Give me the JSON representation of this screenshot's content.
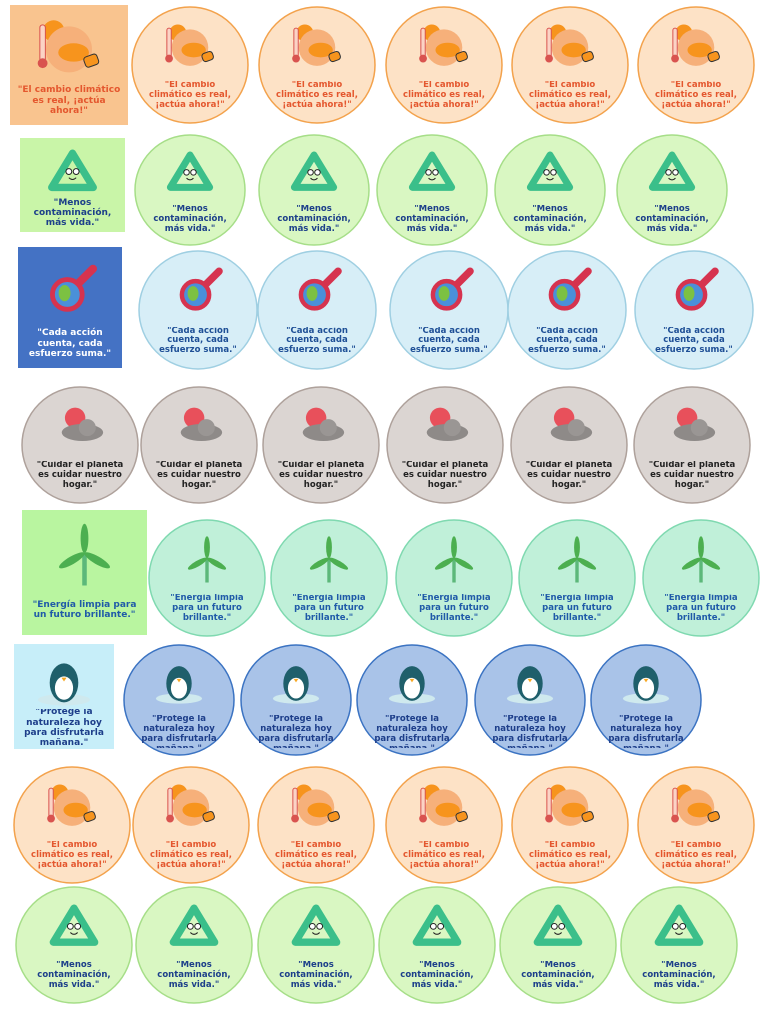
{
  "rows": [
    {
      "square": "\"El cambio climático es real, ¡actúa ahora!\"",
      "stickers": [
        "\"El cambio climático es real, ¡actúa ahora!\"",
        "\"El cambio climático es real, ¡actúa ahora!\"",
        "\"El cambio climático es real, ¡actúa ahora!\"",
        "\"El cambio climático es real, ¡actúa ahora!\"",
        "\"El cambio climático es real, ¡actúa ahora!\""
      ]
    },
    {
      "square": "\"Menos contaminación, más vida.\"",
      "stickers": [
        "\"Menos contaminación, más vida.\"",
        "\"Menos contaminación, más vida.\"",
        "\"Menos contaminación, más vida.\"",
        "\"Menos contaminación, más vida.\"",
        "\"Menos contaminación, más vida.\""
      ]
    },
    {
      "square": "\"Cada acción cuenta, cada esfuerzo suma.\"",
      "stickers": [
        "\"Cada acción cuenta, cada esfuerzo suma.\"",
        "\"Cada acción cuenta, cada esfuerzo suma.\"",
        "\"Cada acción cuenta, cada esfuerzo suma.\"",
        "\"Cada acción cuenta, cada esfuerzo suma.\"",
        "\"Cada acción cuenta, cada esfuerzo suma.\""
      ]
    },
    {
      "stickers": [
        "\"Cuidar el planeta es cuidar nuestro hogar.\"",
        "\"Cuidar el planeta es cuidar nuestro hogar.\"",
        "\"Cuidar el planeta es cuidar nuestro hogar.\"",
        "\"Cuidar el planeta es cuidar nuestro hogar.\"",
        "\"Cuidar el planeta es cuidar nuestro hogar.\"",
        "\"Cuidar el planeta es cuidar nuestro hogar.\""
      ]
    },
    {
      "square": "\"Energía limpia para un futuro brillante.\"",
      "stickers": [
        "\"Energía limpia para un futuro brillante.\"",
        "\"Energía limpia para un futuro brillante.\"",
        "\"Energía limpia para un futuro brillante.\"",
        "\"Energía limpia para un futuro brillante.\"",
        "\"Energía limpia para un futuro brillante.\""
      ]
    },
    {
      "square": "\"Protege la naturaleza hoy para disfrutarla mañana.\"",
      "stickers": [
        "\"Protege la naturaleza hoy para disfrutarla mañana.\"",
        "\"Protege la naturaleza hoy para disfrutarla mañana.\"",
        "\"Protege la naturaleza hoy para disfrutarla mañana.\"",
        "\"Protege la naturaleza hoy para disfrutarla mañana.\"",
        "\"Protege la naturaleza hoy para disfrutarla mañana.\""
      ]
    },
    {
      "stickers": [
        "\"El cambio climático es real, ¡actúa ahora!\"",
        "\"El cambio climático es real, ¡actúa ahora!\"",
        "\"El cambio climático es real, ¡actúa ahora!\"",
        "\"El cambio climático es real, ¡actúa ahora!\"",
        "\"El cambio climático es real, ¡actúa ahora!\"",
        "\"El cambio climático es real, ¡actúa ahora!\""
      ]
    },
    {
      "stickers": [
        "\"Menos contaminación, más vida.\"",
        "\"Menos contaminación, más vida.\"",
        "\"Menos contaminación, más vida.\"",
        "\"Menos contaminación, más vida.\"",
        "\"Menos contaminación, más vida.\"",
        "\"Menos contaminación, más vida.\""
      ]
    }
  ]
}
